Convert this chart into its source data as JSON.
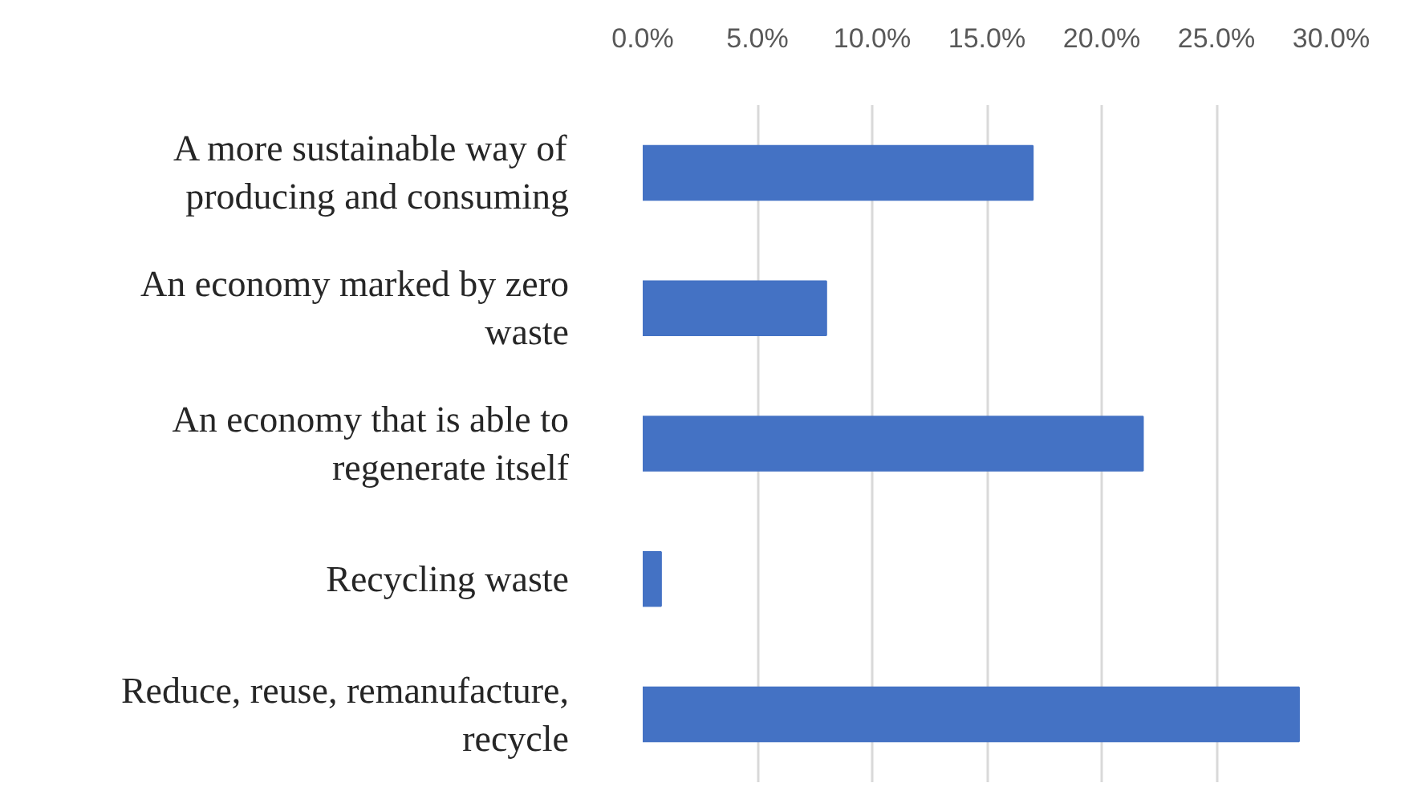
{
  "chart_data": {
    "type": "bar",
    "orientation": "horizontal",
    "categories": [
      "A more sustainable way of producing and consuming",
      "An economy marked by zero waste",
      "An economy that is able to regenerate itself",
      "Recycling waste",
      "Reduce, reuse, remanufacture, recycle"
    ],
    "values": [
      17.0,
      8.0,
      21.8,
      0.8,
      28.6
    ],
    "color": "#4472c4",
    "xlim": [
      0,
      30
    ],
    "xticks": [
      {
        "value": 0,
        "label": "0.0%"
      },
      {
        "value": 5,
        "label": "5.0%"
      },
      {
        "value": 10,
        "label": "10.0%"
      },
      {
        "value": 15,
        "label": "15.0%"
      },
      {
        "value": 20,
        "label": "20.0%"
      },
      {
        "value": 25,
        "label": "25.0%"
      },
      {
        "value": 30,
        "label": "30.0%"
      }
    ],
    "grid": "x"
  }
}
